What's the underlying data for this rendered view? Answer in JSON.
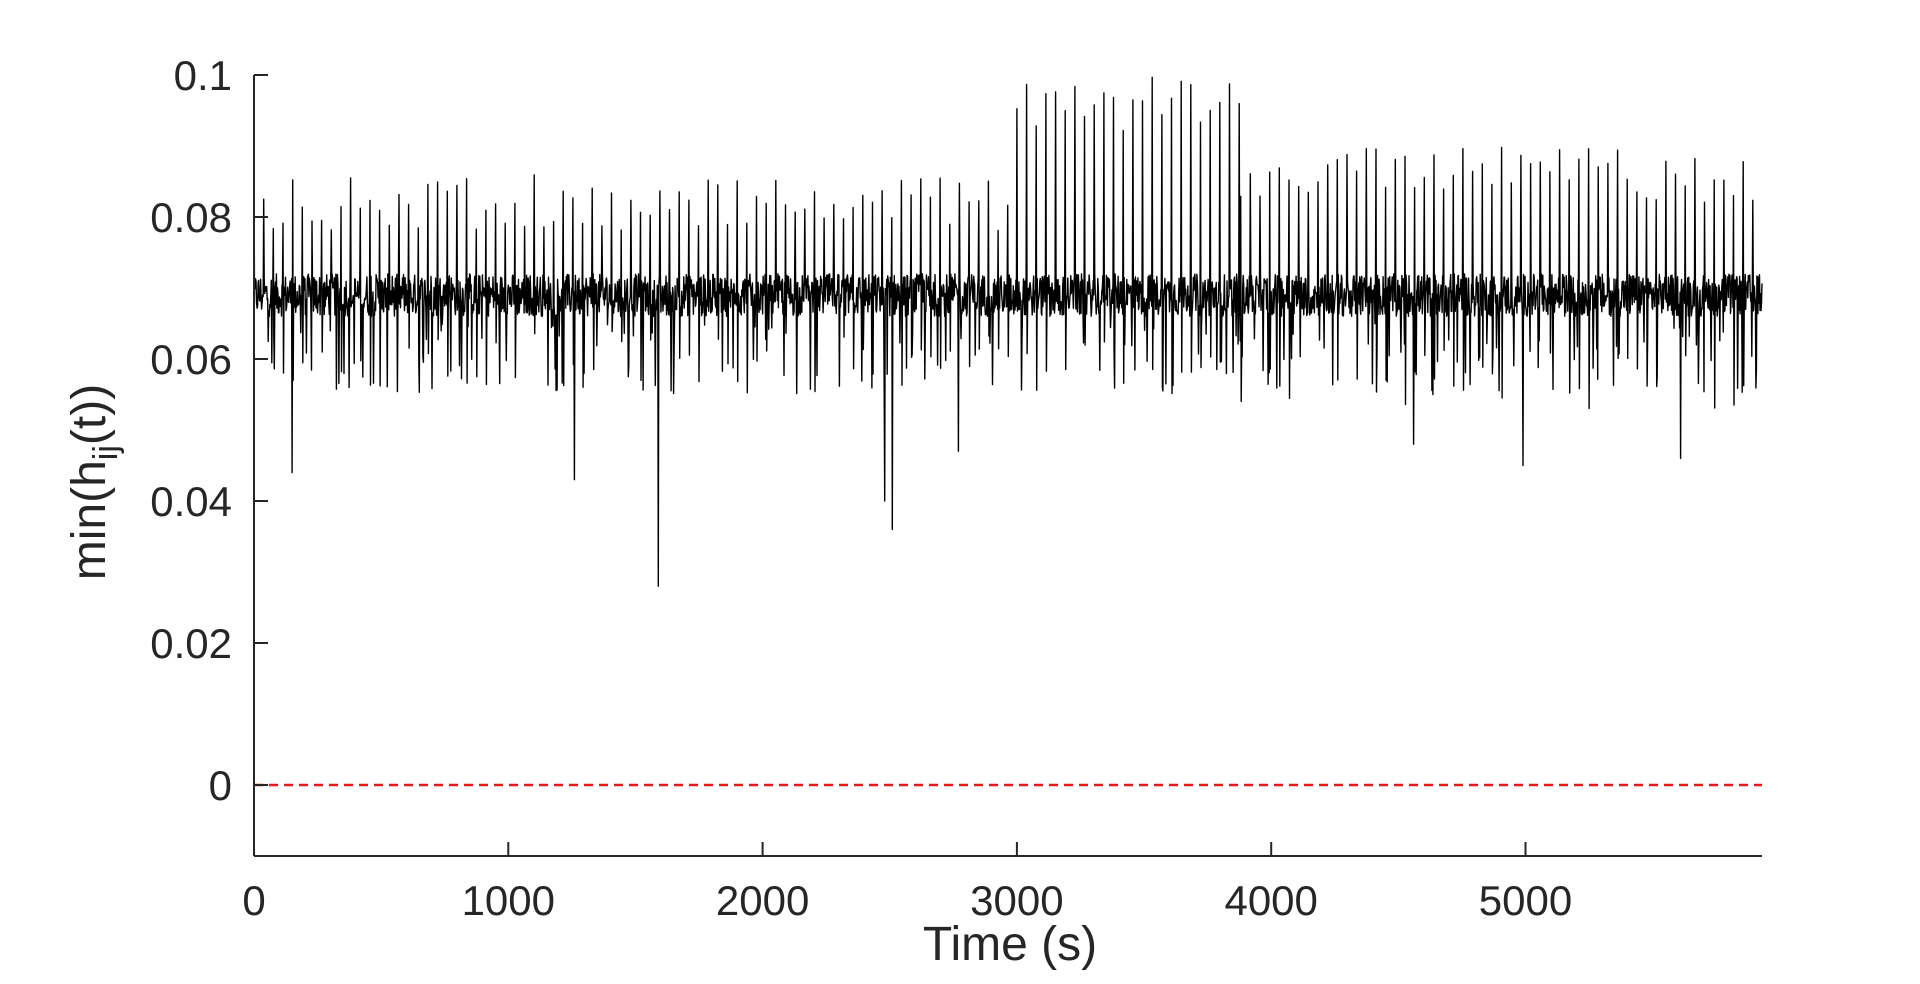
{
  "chart_data": {
    "type": "line",
    "title": "",
    "xlabel": "Time (s)",
    "ylabel_parts": {
      "prefix": "min(h",
      "subscript": "ij",
      "suffix": "(t))"
    },
    "xlim": [
      0,
      5930
    ],
    "ylim": [
      -0.01,
      0.1
    ],
    "xticks": [
      0,
      1000,
      2000,
      3000,
      4000,
      5000
    ],
    "xtick_labels": [
      "0",
      "1000",
      "2000",
      "3000",
      "4000",
      "5000"
    ],
    "yticks": [
      0,
      0.02,
      0.04,
      0.06,
      0.08,
      0.1
    ],
    "ytick_labels": [
      "0",
      "0.02",
      "0.04",
      "0.06",
      "0.08",
      "0.1"
    ],
    "grid": false,
    "series": [
      {
        "style": "solid",
        "color": "#000000",
        "baseline": 0.069,
        "noise": 0.006,
        "segments": [
          {
            "x": [
              0,
              3000
            ],
            "peak_interval": 38,
            "peak_value": 0.086,
            "trough_value": 0.056
          },
          {
            "x": [
              3000,
              3880
            ],
            "peak_interval": 38,
            "peak_value": 0.1,
            "trough_value": 0.055
          },
          {
            "x": [
              3880,
              5930
            ],
            "peak_interval": 38,
            "peak_value": 0.09,
            "trough_value": 0.053
          }
        ],
        "notable_points": [
          {
            "x": 150,
            "y": 0.044
          },
          {
            "x": 1260,
            "y": 0.043
          },
          {
            "x": 1590,
            "y": 0.028
          },
          {
            "x": 2480,
            "y": 0.04
          },
          {
            "x": 2510,
            "y": 0.036
          },
          {
            "x": 2770,
            "y": 0.047
          },
          {
            "x": 4560,
            "y": 0.048
          },
          {
            "x": 4990,
            "y": 0.045
          },
          {
            "x": 5610,
            "y": 0.046
          }
        ]
      },
      {
        "style": "dashed",
        "color": "#e41a1c",
        "x": [
          0,
          5930
        ],
        "values": [
          0,
          0
        ]
      }
    ]
  }
}
